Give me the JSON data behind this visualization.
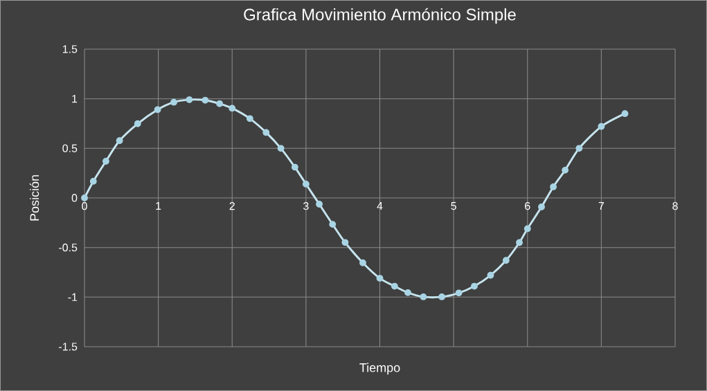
{
  "chart_data": {
    "type": "line",
    "title": "Grafica Movimiento Armónico Simple",
    "xlabel": "Tiempo",
    "ylabel": "Posición",
    "x": [
      0,
      0.12,
      0.29,
      0.475,
      0.72,
      0.99,
      1.21,
      1.42,
      1.635,
      1.83,
      2.0,
      2.24,
      2.46,
      2.66,
      2.85,
      3.0,
      3.18,
      3.36,
      3.53,
      3.77,
      4.0,
      4.2,
      4.38,
      4.59,
      4.84,
      5.07,
      5.28,
      5.5,
      5.71,
      5.89,
      6.0,
      6.19,
      6.35,
      6.51,
      6.7,
      7.0,
      7.32
    ],
    "series": [
      {
        "color": "#c6e4ee",
        "values": [
          0,
          0.168,
          0.37,
          0.577,
          0.748,
          0.89,
          0.965,
          0.99,
          0.985,
          0.95,
          0.904,
          0.8,
          0.66,
          0.5,
          0.31,
          0.14,
          -0.063,
          -0.266,
          -0.449,
          -0.654,
          -0.81,
          -0.89,
          -0.955,
          -0.997,
          -0.997,
          -0.958,
          -0.89,
          -0.78,
          -0.63,
          -0.45,
          -0.31,
          -0.091,
          0.112,
          0.28,
          0.5,
          0.72,
          0.85
        ]
      }
    ],
    "xlim": [
      0,
      8
    ],
    "ylim": [
      -1.5,
      1.5
    ],
    "xticks": [
      0,
      1,
      2,
      3,
      4,
      5,
      6,
      7,
      8
    ],
    "yticks": [
      -1.5,
      -1,
      -0.5,
      0,
      0.5,
      1,
      1.5
    ],
    "grid": true,
    "marker": "circle",
    "line_style": "solid"
  }
}
